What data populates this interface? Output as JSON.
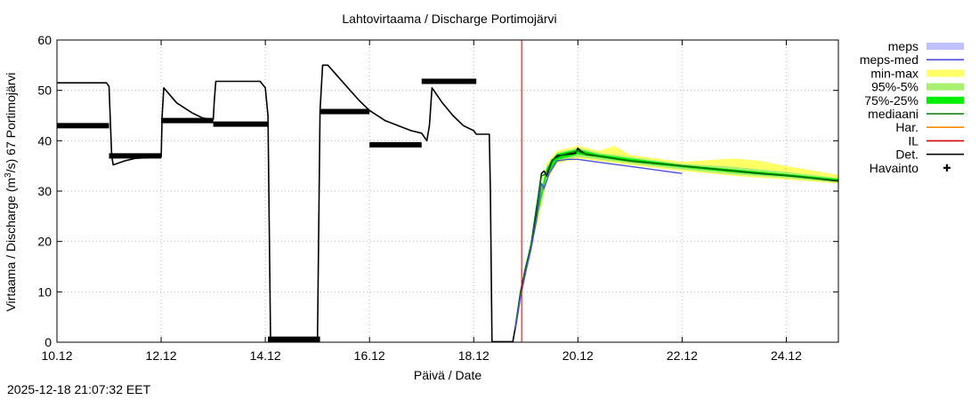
{
  "chart_data": {
    "type": "line",
    "title": "Lahtovirtaama / Discharge  Portimojärvi",
    "xlabel": "Päivä / Date",
    "ylabel_main": "Virtaama / Discharge (m",
    "ylabel_sup": "3",
    "ylabel_tail": "/s)  67 Portimojärvi",
    "x_range_days": [
      10,
      25
    ],
    "ylim": [
      0,
      60
    ],
    "y_ticks": [
      0,
      10,
      20,
      30,
      40,
      50,
      60
    ],
    "x_ticks": [
      {
        "day": 10,
        "label": "10.12"
      },
      {
        "day": 12,
        "label": "12.12"
      },
      {
        "day": 14,
        "label": "14.12"
      },
      {
        "day": 16,
        "label": "16.12"
      },
      {
        "day": 18,
        "label": "18.12"
      },
      {
        "day": 20,
        "label": "20.12"
      },
      {
        "day": 22,
        "label": "22.12"
      },
      {
        "day": 24,
        "label": "24.12"
      }
    ],
    "forecast_start_day": 18.92,
    "legend_position": "right-outside",
    "legend": [
      {
        "label": "meps",
        "color": "#c0c0ff",
        "style": "band"
      },
      {
        "label": "meps-med",
        "color": "#5050e0",
        "style": "line"
      },
      {
        "label": "min-max",
        "color": "#ffff66",
        "style": "band"
      },
      {
        "label": "95%-5%",
        "color": "#a8f070",
        "style": "band"
      },
      {
        "label": "75%-25%",
        "color": "#00ee00",
        "style": "band"
      },
      {
        "label": "mediaani",
        "color": "#007700",
        "style": "line"
      },
      {
        "label": "Har.",
        "color": "#ff8800",
        "style": "line"
      },
      {
        "label": "IL",
        "color": "#dd0000",
        "style": "line"
      },
      {
        "label": "Det.",
        "color": "#000000",
        "style": "line"
      },
      {
        "label": "Havainto",
        "color": "#000000",
        "style": "marker"
      }
    ],
    "series": [
      {
        "name": "Det.",
        "points": [
          [
            10.0,
            51.5
          ],
          [
            10.95,
            51.5
          ],
          [
            11.0,
            50.8
          ],
          [
            11.05,
            37.0
          ],
          [
            11.08,
            35.2
          ],
          [
            11.3,
            36.0
          ],
          [
            11.5,
            36.5
          ],
          [
            12.0,
            36.8
          ],
          [
            12.02,
            45.0
          ],
          [
            12.05,
            50.5
          ],
          [
            12.3,
            47.5
          ],
          [
            12.6,
            45.5
          ],
          [
            12.8,
            44.5
          ],
          [
            13.0,
            44.2
          ],
          [
            13.02,
            48.0
          ],
          [
            13.05,
            51.8
          ],
          [
            13.3,
            51.8
          ],
          [
            13.9,
            51.8
          ],
          [
            14.0,
            50.5
          ],
          [
            14.05,
            45.0
          ],
          [
            14.1,
            0.2
          ],
          [
            15.0,
            0.2
          ],
          [
            15.05,
            46.0
          ],
          [
            15.1,
            55.0
          ],
          [
            15.2,
            55.0
          ],
          [
            15.5,
            51.5
          ],
          [
            15.8,
            48.0
          ],
          [
            16.0,
            46.0
          ],
          [
            16.3,
            44.0
          ],
          [
            16.8,
            42.0
          ],
          [
            17.0,
            41.5
          ],
          [
            17.1,
            40.0
          ],
          [
            17.15,
            43.0
          ],
          [
            17.2,
            50.5
          ],
          [
            17.4,
            47.5
          ],
          [
            17.6,
            45.0
          ],
          [
            17.8,
            43.0
          ],
          [
            18.0,
            42.0
          ],
          [
            18.05,
            41.3
          ],
          [
            18.3,
            41.3
          ],
          [
            18.32,
            30.0
          ],
          [
            18.35,
            0.1
          ],
          [
            18.75,
            0.1
          ],
          [
            18.8,
            3.0
          ],
          [
            18.9,
            10.0
          ],
          [
            19.0,
            15.0
          ],
          [
            19.1,
            19.0
          ],
          [
            19.2,
            26.0
          ],
          [
            19.3,
            33.5
          ],
          [
            19.35,
            34.0
          ],
          [
            19.4,
            33.0
          ],
          [
            19.5,
            36.0
          ],
          [
            19.6,
            37.0
          ],
          [
            19.8,
            37.3
          ],
          [
            19.95,
            37.5
          ],
          [
            20.0,
            38.5
          ],
          [
            20.05,
            38.0
          ],
          [
            20.15,
            37.3
          ],
          [
            20.5,
            36.8
          ],
          [
            21.0,
            36.0
          ],
          [
            21.5,
            35.5
          ],
          [
            22.0,
            35.0
          ],
          [
            22.5,
            34.5
          ],
          [
            23.0,
            34.0
          ],
          [
            23.5,
            33.5
          ],
          [
            24.0,
            33.1
          ],
          [
            24.5,
            32.6
          ],
          [
            25.0,
            32.0
          ]
        ]
      },
      {
        "name": "mediaani",
        "points": [
          [
            18.8,
            3.0
          ],
          [
            18.9,
            10.0
          ],
          [
            19.0,
            15.0
          ],
          [
            19.1,
            19.5
          ],
          [
            19.2,
            26.5
          ],
          [
            19.3,
            33.0
          ],
          [
            19.4,
            33.5
          ],
          [
            19.5,
            36.2
          ],
          [
            19.7,
            37.2
          ],
          [
            20.0,
            38.0
          ],
          [
            20.1,
            37.5
          ],
          [
            20.5,
            36.8
          ],
          [
            21.0,
            36.0
          ],
          [
            22.0,
            35.0
          ],
          [
            23.0,
            34.0
          ],
          [
            24.0,
            33.1
          ],
          [
            25.0,
            32.1
          ]
        ]
      },
      {
        "name": "meps-med",
        "points": [
          [
            18.8,
            2.5
          ],
          [
            18.9,
            9.0
          ],
          [
            19.0,
            14.0
          ],
          [
            19.1,
            18.5
          ],
          [
            19.2,
            24.0
          ],
          [
            19.3,
            31.5
          ],
          [
            19.35,
            30.5
          ],
          [
            19.45,
            33.5
          ],
          [
            19.6,
            36.0
          ],
          [
            19.8,
            36.3
          ],
          [
            20.0,
            36.3
          ],
          [
            20.5,
            35.6
          ],
          [
            21.0,
            34.9
          ],
          [
            21.5,
            34.2
          ],
          [
            22.0,
            33.5
          ]
        ]
      }
    ],
    "bands": [
      {
        "name": "min-max",
        "upper": [
          [
            19.2,
            27.0
          ],
          [
            19.4,
            35.5
          ],
          [
            19.6,
            38.0
          ],
          [
            20.0,
            39.0
          ],
          [
            20.4,
            38.0
          ],
          [
            20.7,
            39.0
          ],
          [
            21.0,
            37.2
          ],
          [
            22.0,
            35.8
          ],
          [
            23.0,
            36.5
          ],
          [
            23.5,
            36.0
          ],
          [
            24.0,
            35.0
          ],
          [
            25.0,
            33.2
          ]
        ],
        "lower": [
          [
            19.2,
            22.0
          ],
          [
            19.4,
            32.0
          ],
          [
            19.6,
            35.5
          ],
          [
            20.0,
            36.5
          ],
          [
            21.0,
            35.2
          ],
          [
            22.0,
            34.0
          ],
          [
            23.0,
            33.0
          ],
          [
            24.0,
            32.3
          ],
          [
            25.0,
            31.5
          ]
        ]
      },
      {
        "name": "95%-5%",
        "upper": [
          [
            19.2,
            26.5
          ],
          [
            19.4,
            35.0
          ],
          [
            19.6,
            37.6
          ],
          [
            20.0,
            38.6
          ],
          [
            20.4,
            37.6
          ],
          [
            21.0,
            36.8
          ],
          [
            22.0,
            35.4
          ],
          [
            23.0,
            34.8
          ],
          [
            24.0,
            33.8
          ],
          [
            25.0,
            32.6
          ]
        ],
        "lower": [
          [
            19.2,
            23.0
          ],
          [
            19.4,
            32.5
          ],
          [
            19.6,
            35.8
          ],
          [
            20.0,
            36.8
          ],
          [
            21.0,
            35.5
          ],
          [
            22.0,
            34.3
          ],
          [
            23.0,
            33.3
          ],
          [
            24.0,
            32.6
          ],
          [
            25.0,
            31.7
          ]
        ]
      },
      {
        "name": "75%-25%",
        "upper": [
          [
            19.2,
            25.5
          ],
          [
            19.4,
            34.5
          ],
          [
            19.6,
            37.4
          ],
          [
            20.0,
            38.3
          ],
          [
            20.4,
            37.3
          ],
          [
            21.0,
            36.5
          ],
          [
            22.0,
            35.2
          ],
          [
            23.0,
            34.3
          ],
          [
            24.0,
            33.4
          ],
          [
            25.0,
            32.4
          ]
        ],
        "lower": [
          [
            19.2,
            24.0
          ],
          [
            19.4,
            33.0
          ],
          [
            19.6,
            36.2
          ],
          [
            20.0,
            37.3
          ],
          [
            21.0,
            35.8
          ],
          [
            22.0,
            34.7
          ],
          [
            23.0,
            33.7
          ],
          [
            24.0,
            32.9
          ],
          [
            25.0,
            31.9
          ]
        ]
      }
    ],
    "observations": [
      {
        "x_from": 10.0,
        "x_to": 11.0,
        "y": 43.0
      },
      {
        "x_from": 11.0,
        "x_to": 12.0,
        "y": 37.0
      },
      {
        "x_from": 12.0,
        "x_to": 13.0,
        "y": 44.0
      },
      {
        "x_from": 13.0,
        "x_to": 14.05,
        "y": 43.3
      },
      {
        "x_from": 14.05,
        "x_to": 15.05,
        "y": 0.6
      },
      {
        "x_from": 15.05,
        "x_to": 16.0,
        "y": 45.8
      },
      {
        "x_from": 16.0,
        "x_to": 17.0,
        "y": 39.2
      },
      {
        "x_from": 17.0,
        "x_to": 18.05,
        "y": 51.8
      }
    ]
  },
  "timestamp": "2025-12-18 21:07:32 EET"
}
